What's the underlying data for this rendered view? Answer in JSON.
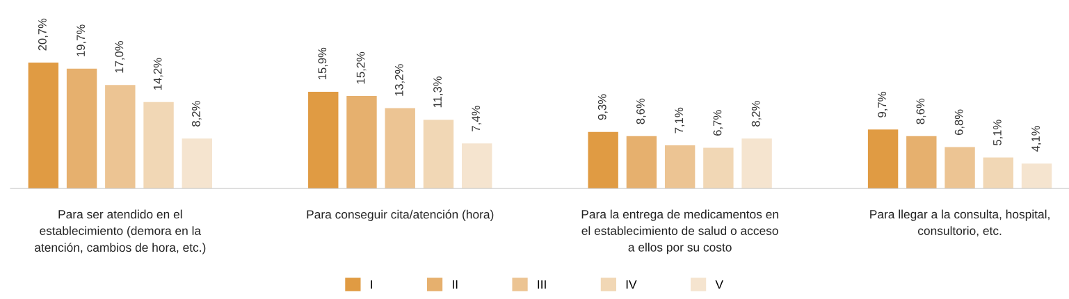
{
  "chart_data": {
    "type": "bar",
    "categories": [
      "Para ser atendido en el\nestablecimiento (demora en la\natención, cambios de hora, etc.)",
      "Para conseguir cita/atención (hora)",
      "Para la entrega de medicamentos en\nel establecimiento de salud o acceso\na ellos por su costo",
      "Para llegar a la consulta, hospital,\nconsultorio, etc."
    ],
    "legend": "bottom",
    "series": [
      {
        "name": "I",
        "color": "#e09b43",
        "values": [
          20.7,
          15.9,
          9.3,
          9.7
        ],
        "value_labels": [
          "20,7%",
          "15,9%",
          "9,3%",
          "9,7%"
        ]
      },
      {
        "name": "II",
        "color": "#e6b06e",
        "values": [
          19.7,
          15.2,
          8.6,
          8.6
        ],
        "value_labels": [
          "19,7%",
          "15,2%",
          "8,6%",
          "8,6%"
        ]
      },
      {
        "name": "III",
        "color": "#ecc493",
        "values": [
          17.0,
          13.2,
          7.1,
          6.8
        ],
        "value_labels": [
          "17,0%",
          "13,2%",
          "7,1%",
          "6,8%"
        ]
      },
      {
        "name": "IV",
        "color": "#f1d7b5",
        "values": [
          14.2,
          11.3,
          6.7,
          5.1
        ],
        "value_labels": [
          "14,2%",
          "11,3%",
          "6,7%",
          "5,1%"
        ]
      },
      {
        "name": "V",
        "color": "#f5e4cf",
        "values": [
          8.2,
          7.4,
          8.2,
          4.1
        ],
        "value_labels": [
          "8,2%",
          "7,4%",
          "8,2%",
          "4,1%"
        ]
      }
    ]
  }
}
